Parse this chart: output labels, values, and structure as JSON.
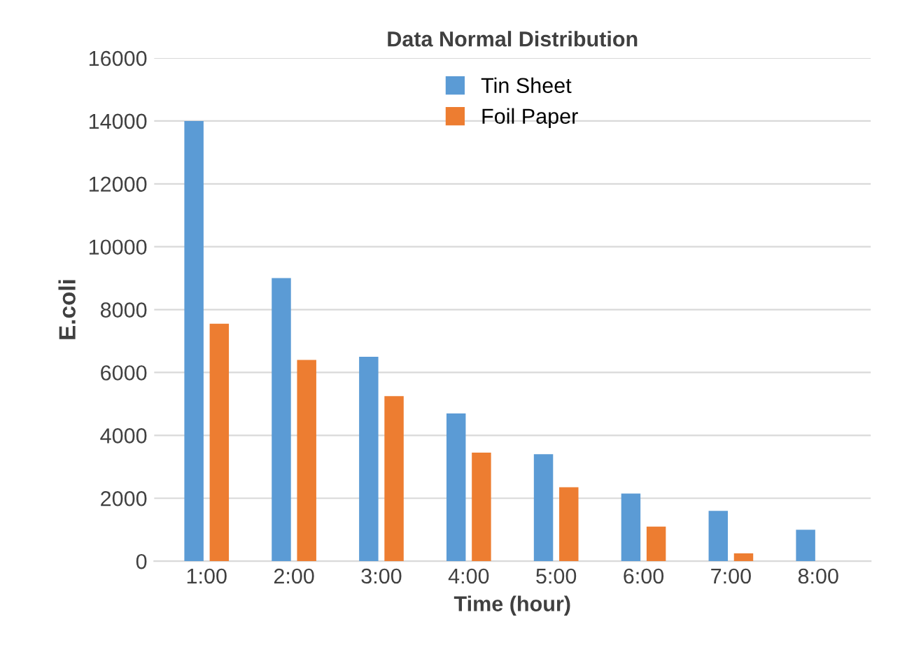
{
  "chart_data": {
    "type": "bar",
    "title": "Data Normal Distribution",
    "xlabel": "Time (hour)",
    "ylabel": "E.coli",
    "categories": [
      "1:00",
      "2:00",
      "3:00",
      "4:00",
      "5:00",
      "6:00",
      "7:00",
      "8:00"
    ],
    "series": [
      {
        "name": "Tin Sheet",
        "color": "#5b9bd5",
        "values": [
          14000,
          9000,
          6500,
          4700,
          3400,
          2150,
          1600,
          1000
        ]
      },
      {
        "name": "Foil Paper",
        "color": "#ed7d31",
        "values": [
          7550,
          6400,
          5250,
          3450,
          2350,
          1100,
          250,
          null
        ]
      }
    ],
    "ylim": [
      0,
      16000
    ],
    "yticks": [
      0,
      2000,
      4000,
      6000,
      8000,
      10000,
      12000,
      14000,
      16000
    ],
    "grid": "y",
    "legend": "top"
  }
}
